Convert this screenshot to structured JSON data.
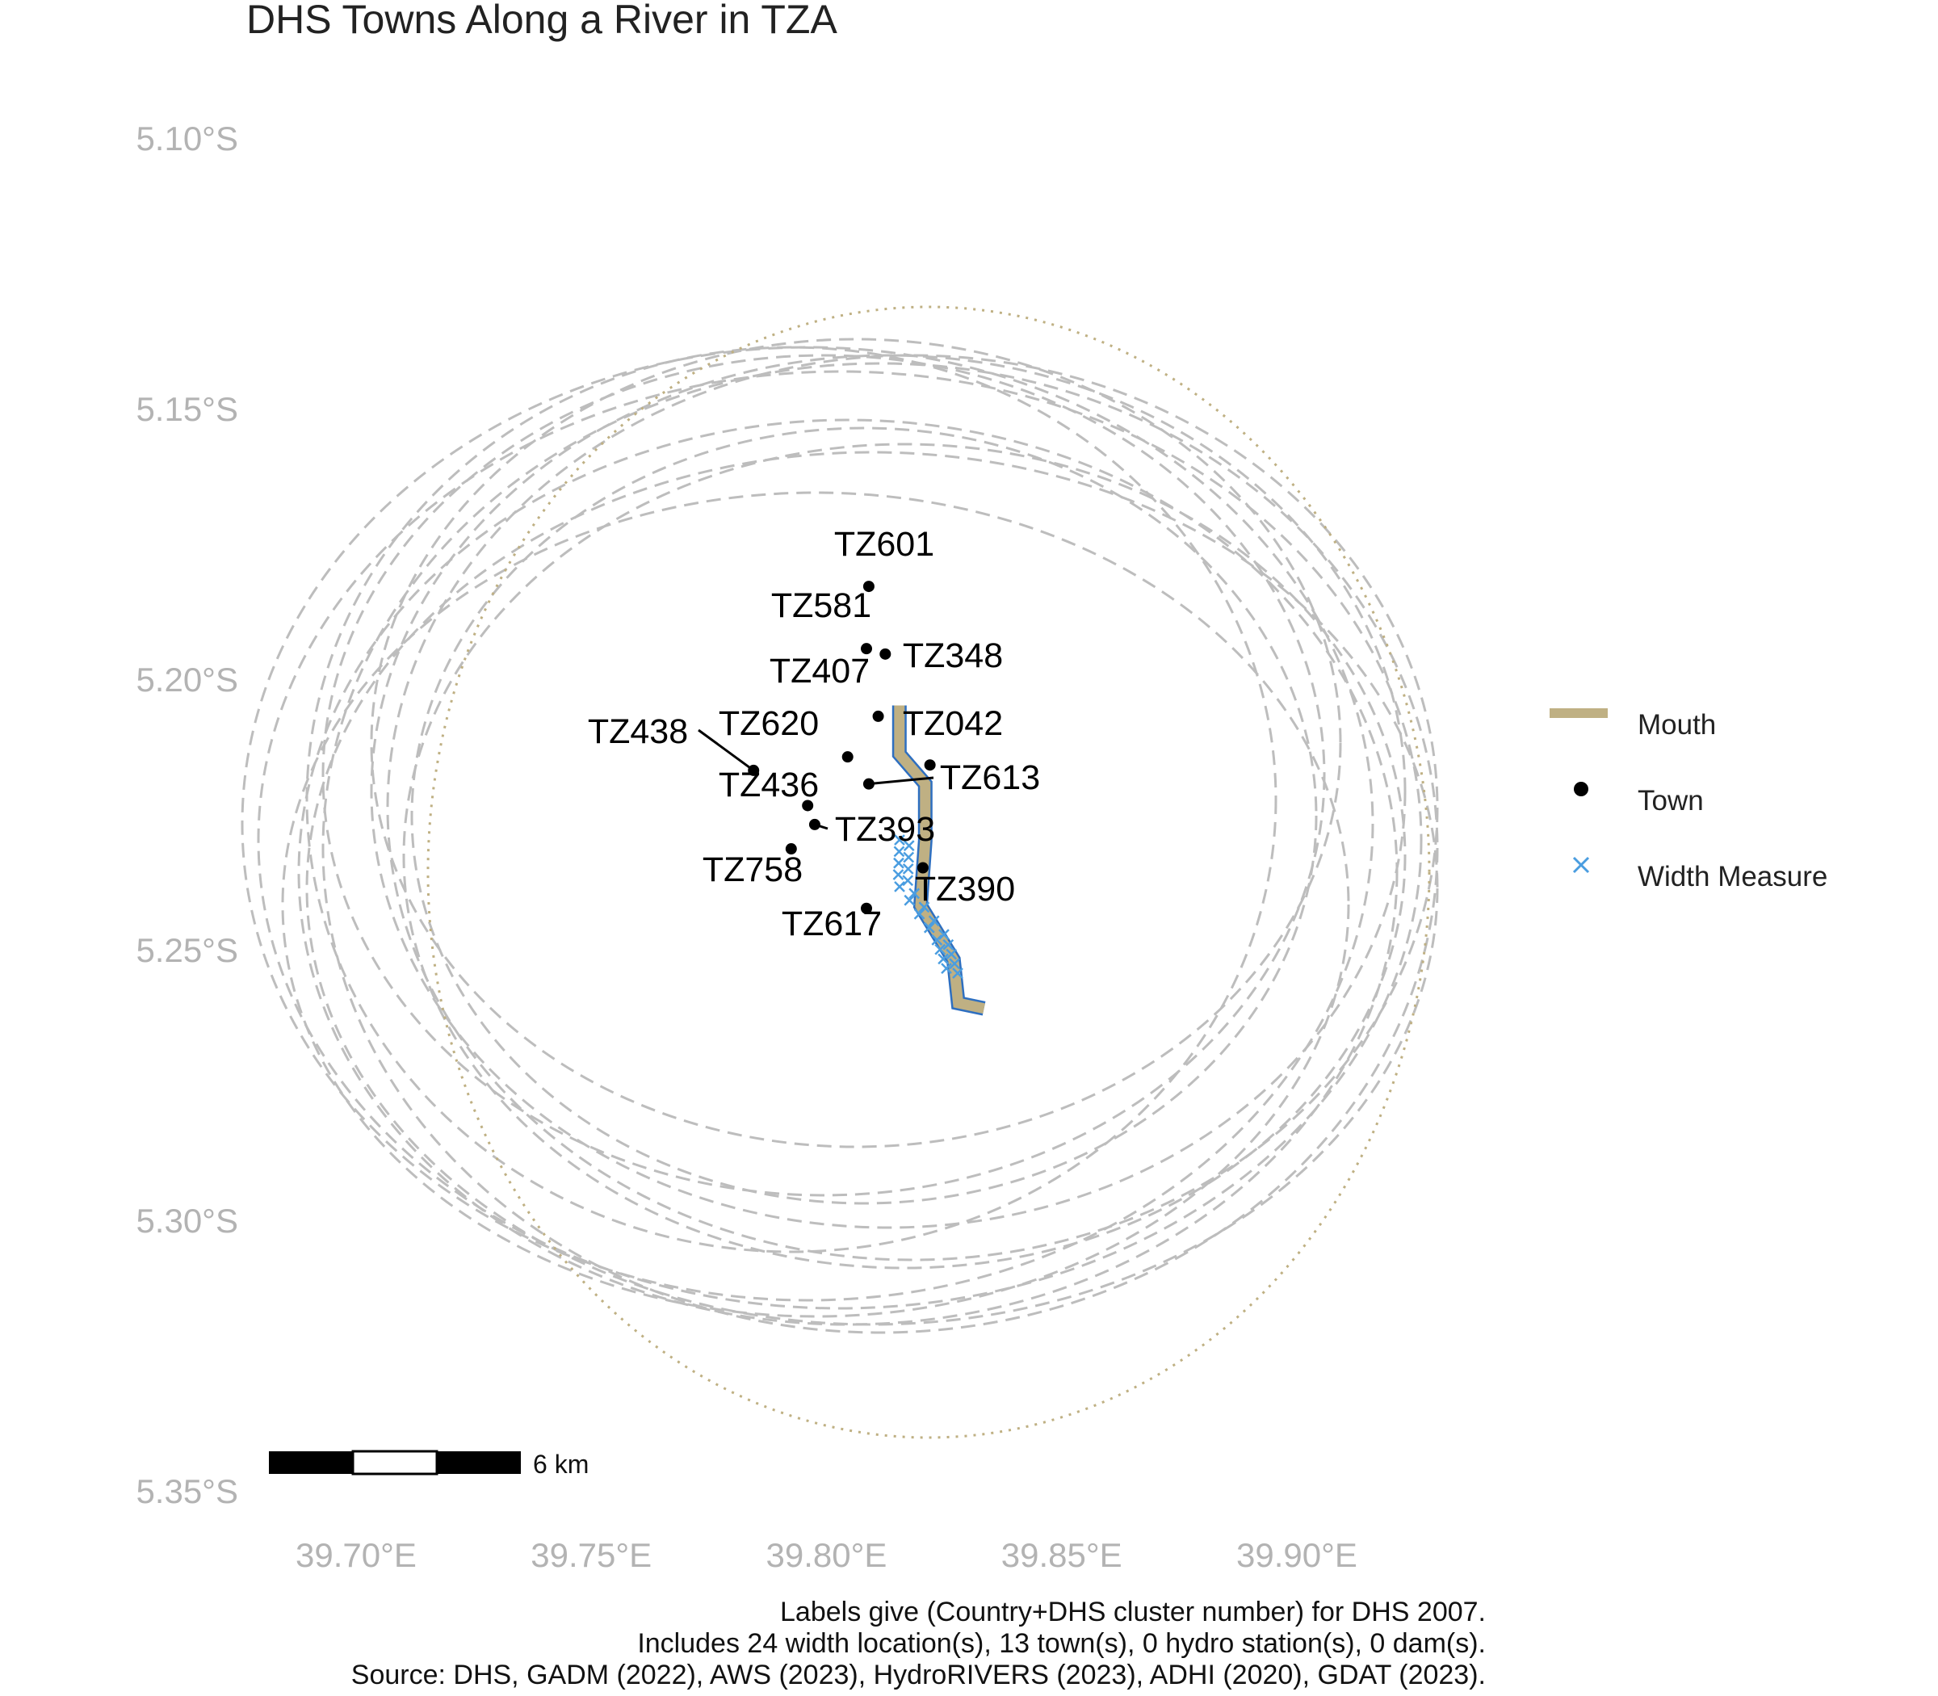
{
  "title": "DHS Towns Along a River in TZA",
  "axes": {
    "y_ticks": [
      {
        "value": -5.1,
        "label": "5.10°S"
      },
      {
        "value": -5.15,
        "label": "5.15°S"
      },
      {
        "value": -5.2,
        "label": "5.20°S"
      },
      {
        "value": -5.25,
        "label": "5.25°S"
      },
      {
        "value": -5.3,
        "label": "5.30°S"
      },
      {
        "value": -5.35,
        "label": "5.35°S"
      }
    ],
    "x_ticks": [
      {
        "value": 39.7,
        "label": "39.70°E"
      },
      {
        "value": 39.75,
        "label": "39.75°E"
      },
      {
        "value": 39.8,
        "label": "39.80°E"
      },
      {
        "value": 39.85,
        "label": "39.85°E"
      },
      {
        "value": 39.9,
        "label": "39.90°E"
      }
    ],
    "tick_color": "#b3b3b3"
  },
  "scale_bar": {
    "label": "6 km"
  },
  "legend": {
    "items": [
      {
        "key": "mouth",
        "label": "Mouth",
        "color": "#bfb083"
      },
      {
        "key": "town",
        "label": "Town",
        "color": "#000000"
      },
      {
        "key": "width",
        "label": "Width Measure",
        "color": "#4a9de0"
      }
    ]
  },
  "colors": {
    "river_line": "#2e6fc0",
    "river_mouth": "#bfb083",
    "buffer_dashed": "#bdbdbd",
    "buffer_dotted": "#bfb083",
    "town": "#000000",
    "width_marker": "#4a9de0"
  },
  "river": {
    "path_lonlat": [
      [
        39.8155,
        -5.205
      ],
      [
        39.8155,
        -5.214
      ],
      [
        39.821,
        -5.2195
      ],
      [
        39.821,
        -5.23
      ],
      [
        39.82,
        -5.242
      ],
      [
        39.827,
        -5.252
      ],
      [
        39.828,
        -5.26
      ],
      [
        39.8335,
        -5.261
      ]
    ]
  },
  "towns": [
    {
      "id": "TZ601",
      "lon": 39.809,
      "lat": -5.183
    },
    {
      "id": "TZ581",
      "lon": 39.8085,
      "lat": -5.1945
    },
    {
      "id": "TZ348",
      "lon": 39.8125,
      "lat": -5.1955
    },
    {
      "id": "TZ407",
      "lon": 39.811,
      "lat": -5.207
    },
    {
      "id": "TZ620",
      "lon": 39.8045,
      "lat": -5.2145
    },
    {
      "id": "TZ042",
      "lon": 39.822,
      "lat": -5.216
    },
    {
      "id": "TZ438",
      "lon": 39.7845,
      "lat": -5.217
    },
    {
      "id": "TZ613",
      "lon": 39.809,
      "lat": -5.2195
    },
    {
      "id": "TZ436",
      "lon": 39.796,
      "lat": -5.2235
    },
    {
      "id": "TZ393",
      "lon": 39.7975,
      "lat": -5.227
    },
    {
      "id": "TZ758",
      "lon": 39.7925,
      "lat": -5.2315
    },
    {
      "id": "TZ390",
      "lon": 39.8205,
      "lat": -5.235
    },
    {
      "id": "TZ617",
      "lon": 39.8085,
      "lat": -5.2425
    }
  ],
  "caption": [
    "Labels give (Country+DHS cluster number) for DHS 2007.",
    "Includes 24 width location(s), 13 town(s), 0 hydro station(s), 0 dam(s).",
    "Source: DHS, GADM (2022), AWS (2023), HydroRIVERS (2023), ADHI (2020), GDAT (2023)."
  ]
}
